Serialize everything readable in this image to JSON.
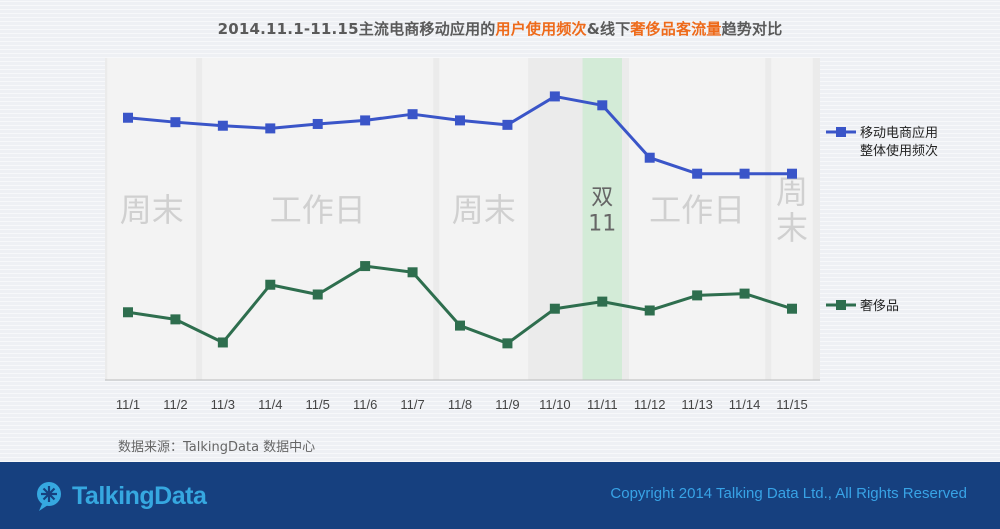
{
  "title": {
    "part1": "2014.11.1-11.15主流电商移动应用的",
    "highlight1": "用户使用频次",
    "part2": "&线下",
    "highlight2": "奢侈品客流量",
    "part3": "趋势对比"
  },
  "colors": {
    "series_blue": "#3a55c8",
    "series_green": "#2e6e4e",
    "highlight_band": "#d3ebd7",
    "title_highlight": "#ee6a1a",
    "footer_bg": "#16407f",
    "footer_text": "#38a3e6"
  },
  "chart_data": {
    "type": "line",
    "categories": [
      "11/1",
      "11/2",
      "11/3",
      "11/4",
      "11/5",
      "11/6",
      "11/7",
      "11/8",
      "11/9",
      "11/10",
      "11/11",
      "11/12",
      "11/13",
      "11/14",
      "11/15"
    ],
    "series": [
      {
        "name": "移动电商应用整体使用频次",
        "legend_lines": [
          "移动电商应用",
          "整体使用频次"
        ],
        "color": "#3a55c8",
        "marker": "square",
        "values": [
          96,
          101,
          105,
          108,
          103,
          99,
          92,
          99,
          104,
          72,
          82,
          141,
          159,
          159,
          159
        ]
      },
      {
        "name": "奢侈品",
        "legend_lines": [
          "奢侈品"
        ],
        "color": "#2e6e4e",
        "marker": "square",
        "values": [
          315,
          323,
          349,
          284,
          295,
          263,
          270,
          330,
          350,
          311,
          303,
          313,
          296,
          294,
          311
        ]
      }
    ],
    "value_axis": "inverted, unlabeled",
    "ylim": [
      40,
      380
    ],
    "bands": [
      {
        "label_lines": [
          "周末"
        ],
        "from": 0,
        "to": 1,
        "shade": "light",
        "highlight": false
      },
      {
        "label_lines": [
          "工作日"
        ],
        "from": 2,
        "to": 6,
        "shade": "light",
        "highlight": false
      },
      {
        "label_lines": [
          "周末"
        ],
        "from": 7,
        "to": 8,
        "shade": "light",
        "highlight": false
      },
      {
        "label_lines": [
          "双",
          "11"
        ],
        "from": 10,
        "to": 10,
        "shade": "none",
        "highlight": true
      },
      {
        "label_lines": [
          "工作日"
        ],
        "from": 11,
        "to": 13,
        "shade": "light",
        "highlight": false
      },
      {
        "label_lines": [
          "周",
          "末"
        ],
        "from": 14,
        "to": 14,
        "shade": "light",
        "highlight": false
      }
    ],
    "legend_position": "right",
    "grid": false
  },
  "source": "数据来源：TalkingData 数据中心",
  "footer": {
    "logo_text": "TalkingData",
    "copyright": "Copyright 2014 Talking Data Ltd., All Rights Reserved"
  }
}
